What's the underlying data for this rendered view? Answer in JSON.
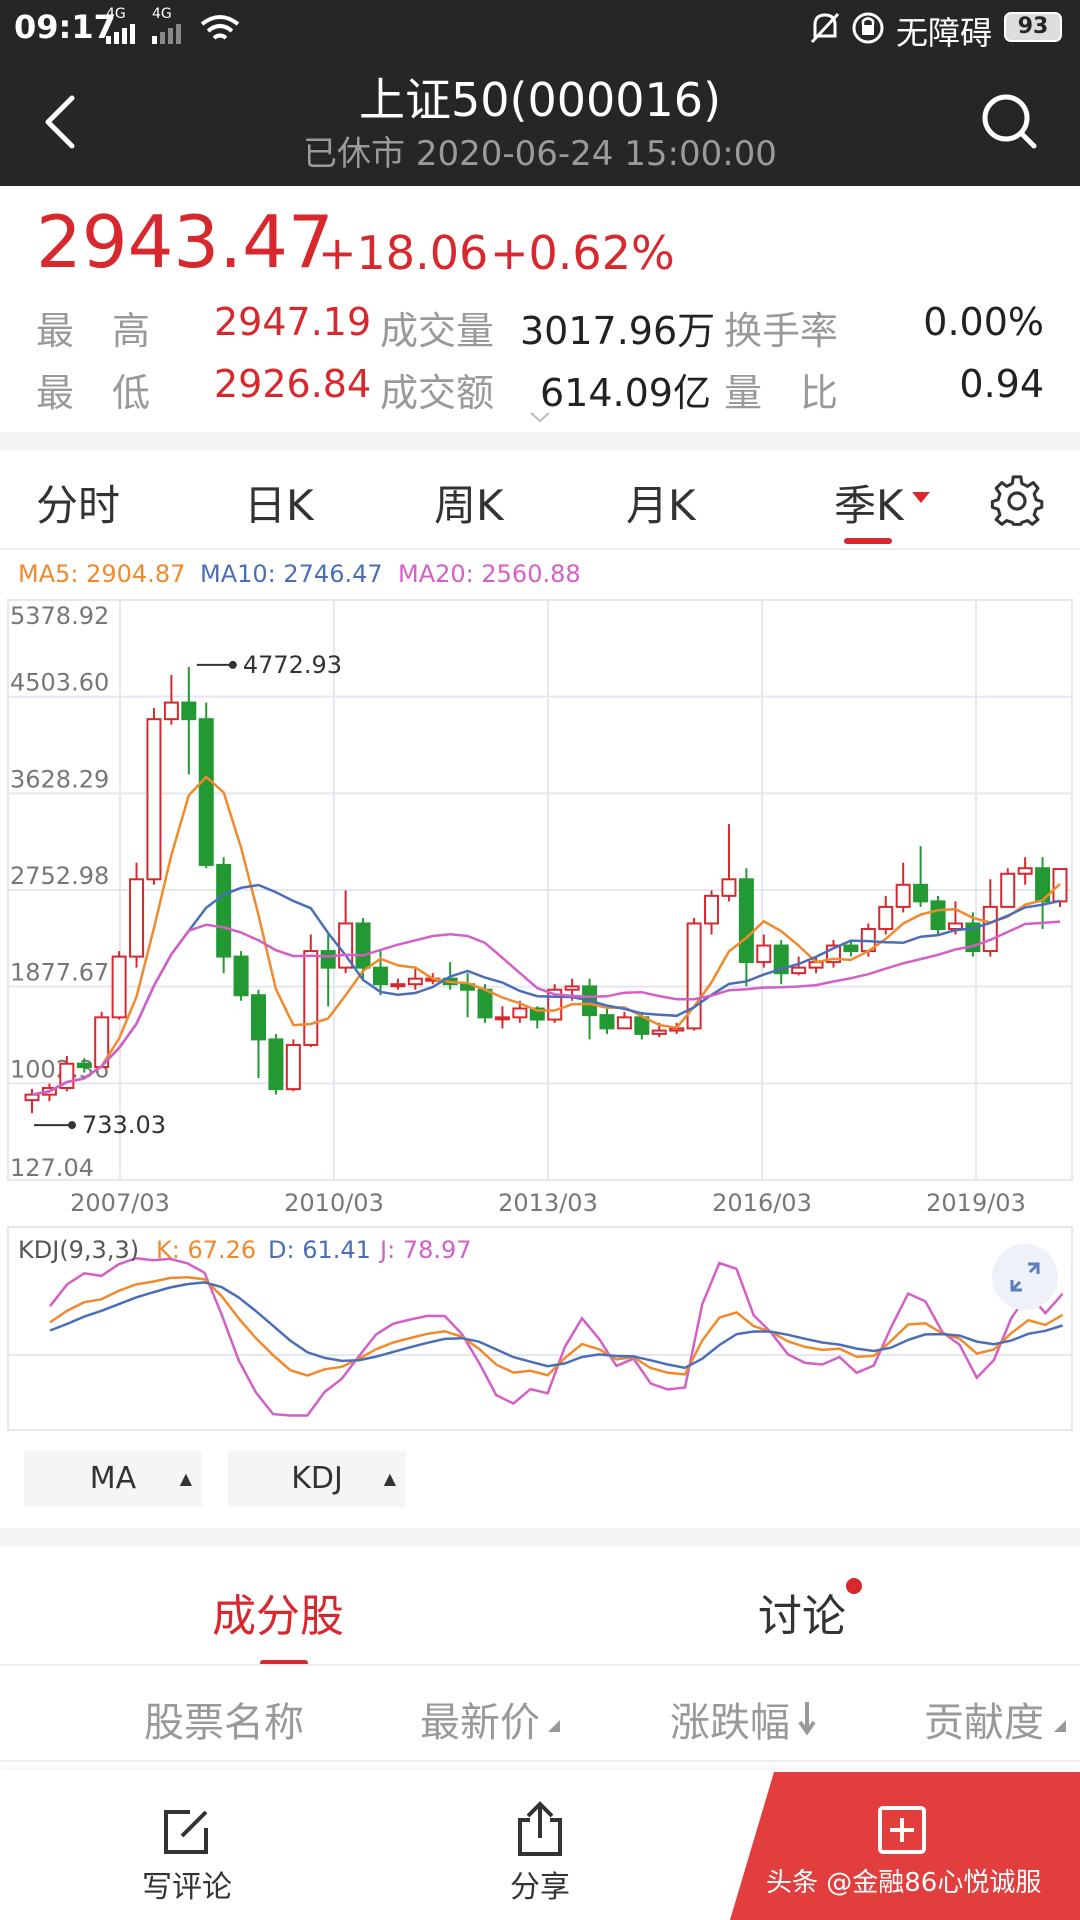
{
  "status_bar": {
    "time": "09:17",
    "signal_1": "4G",
    "signal_2": "4G",
    "accessibility": "无障碍",
    "battery": "93"
  },
  "header": {
    "title": "上证50(000016)",
    "subtitle": "已休市 2020-06-24 15:00:00"
  },
  "quote": {
    "price": "2943.47",
    "change": "+18.06",
    "change_pct": "+0.62%",
    "high_label": "最　高",
    "high": "2947.19",
    "low_label": "最　低",
    "low": "2926.84",
    "volume_label": "成交量",
    "volume": "3017.96万",
    "amount_label": "成交额",
    "amount": "614.09亿",
    "turnover_label": "换手率",
    "turnover": "0.00%",
    "ratio_label": "量　比",
    "ratio": "0.94"
  },
  "period_tabs": [
    "分时",
    "日K",
    "周K",
    "月K",
    "季K"
  ],
  "active_tab": "季K",
  "ma_legend": {
    "ma5": "MA5: 2904.87",
    "ma10": "MA10: 2746.47",
    "ma20": "MA20: 2560.88"
  },
  "kdj_legend": {
    "name": "KDJ(9,3,3)",
    "k": "K: 67.26",
    "d": "D: 61.41",
    "j": "J: 78.97"
  },
  "indicator_buttons": {
    "ma": "MA",
    "kdj": "KDJ"
  },
  "bottom_tabs": {
    "constituents": "成分股",
    "discussion": "讨论"
  },
  "list_header": {
    "name": "股票名称",
    "price": "最新价",
    "change": "涨跌幅",
    "contribution": "贡献度"
  },
  "bottom_nav": {
    "comment": "写评论",
    "share": "分享",
    "watermark": "头条 @金融86心悦诚服"
  },
  "colors": {
    "up": "#d8282d",
    "down": "#229933",
    "ma5": "#f08a2c",
    "ma10": "#4a6fb8",
    "ma20": "#d45fc8"
  },
  "chart_data": {
    "type": "candlestick",
    "y_ticks": [
      "5378.92",
      "4503.60",
      "3628.29",
      "2752.98",
      "1877.67",
      "1002.36",
      "127.04"
    ],
    "y_values": [
      5378.92,
      4503.6,
      3628.29,
      2752.98,
      1877.67,
      1002.36,
      127.04
    ],
    "x_ticks": [
      "2007/03",
      "2010/03",
      "2013/03",
      "2016/03",
      "2019/03"
    ],
    "annotations": {
      "max_label": "4772.93",
      "min_label": "733.03"
    },
    "candles": [
      [
        850,
        900,
        950,
        733
      ],
      [
        900,
        960,
        1000,
        840
      ],
      [
        960,
        1180,
        1250,
        930
      ],
      [
        1180,
        1150,
        1230,
        1100
      ],
      [
        1150,
        1600,
        1650,
        1140
      ],
      [
        1600,
        2150,
        2200,
        1580
      ],
      [
        2150,
        2850,
        3000,
        2050
      ],
      [
        2850,
        4300,
        4400,
        2800
      ],
      [
        4300,
        4450,
        4700,
        4250
      ],
      [
        4450,
        4300,
        4773,
        3800
      ],
      [
        4300,
        2980,
        4450,
        2950
      ],
      [
        2980,
        2150,
        3050,
        2000
      ],
      [
        2150,
        1800,
        2200,
        1750
      ],
      [
        1800,
        1400,
        1850,
        1050
      ],
      [
        1400,
        950,
        1450,
        900
      ],
      [
        950,
        1350,
        1400,
        930
      ],
      [
        1350,
        2200,
        2350,
        1330
      ],
      [
        2200,
        2050,
        2350,
        1700
      ],
      [
        2050,
        2450,
        2750,
        2000
      ],
      [
        2450,
        2050,
        2500,
        1950
      ],
      [
        2050,
        1900,
        2200,
        1800
      ],
      [
        1900,
        1900,
        1950,
        1850
      ],
      [
        1900,
        1950,
        2050,
        1850
      ],
      [
        1950,
        1950,
        2000,
        1900
      ],
      [
        1950,
        1900,
        2100,
        1850
      ],
      [
        1900,
        1850,
        2000,
        1600
      ],
      [
        1850,
        1600,
        1900,
        1550
      ],
      [
        1600,
        1600,
        1700,
        1500
      ],
      [
        1600,
        1680,
        1750,
        1550
      ],
      [
        1680,
        1580,
        1700,
        1500
      ],
      [
        1580,
        1850,
        1900,
        1550
      ],
      [
        1850,
        1880,
        1950,
        1750
      ],
      [
        1880,
        1620,
        1950,
        1400
      ],
      [
        1620,
        1500,
        1700,
        1450
      ],
      [
        1500,
        1600,
        1650,
        1550
      ],
      [
        1600,
        1450,
        1650,
        1400
      ],
      [
        1450,
        1480,
        1550,
        1420
      ],
      [
        1480,
        1500,
        1550,
        1450
      ],
      [
        1500,
        2450,
        2500,
        1480
      ],
      [
        2450,
        2700,
        2750,
        2350
      ],
      [
        2700,
        2850,
        3350,
        2650
      ],
      [
        2850,
        2100,
        2950,
        1880
      ],
      [
        2100,
        2250,
        2350,
        2050
      ],
      [
        2250,
        2000,
        2300,
        1900
      ],
      [
        2000,
        2050,
        2150,
        1980
      ],
      [
        2050,
        2100,
        2150,
        2000
      ],
      [
        2100,
        2250,
        2300,
        2050
      ],
      [
        2250,
        2200,
        2300,
        2150
      ],
      [
        2200,
        2400,
        2450,
        2150
      ],
      [
        2400,
        2600,
        2700,
        2350
      ],
      [
        2600,
        2800,
        3000,
        2550
      ],
      [
        2800,
        2650,
        3150,
        2600
      ],
      [
        2650,
        2400,
        2700,
        2350
      ],
      [
        2400,
        2450,
        2650,
        2350
      ],
      [
        2450,
        2200,
        2550,
        2150
      ],
      [
        2200,
        2600,
        2850,
        2150
      ],
      [
        2600,
        2900,
        2950,
        2600
      ],
      [
        2900,
        2950,
        3050,
        2800
      ],
      [
        2950,
        2650,
        3050,
        2400
      ],
      [
        2650,
        2943,
        2950,
        2600
      ]
    ]
  }
}
